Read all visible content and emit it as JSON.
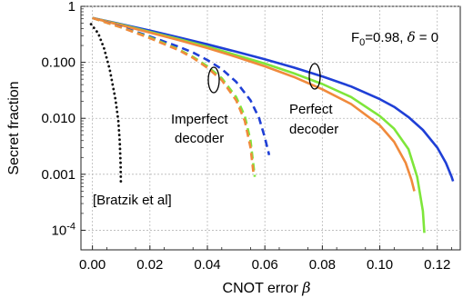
{
  "chart_data": {
    "type": "line",
    "xlabel": "CNOT error",
    "xlabel_symbol": "β",
    "ylabel": "Secret fraction",
    "xlim": [
      -0.004,
      0.128
    ],
    "ylim_log10": [
      -4.35,
      0.0
    ],
    "y_scale": "log",
    "x_ticks": [
      "0.00",
      "0.02",
      "0.04",
      "0.06",
      "0.08",
      "0.10",
      "0.12"
    ],
    "x_tick_values": [
      0.0,
      0.02,
      0.04,
      0.06,
      0.08,
      0.1,
      0.12
    ],
    "y_ticks": [
      {
        "base": "1",
        "exp": "",
        "value": 1
      },
      {
        "base": "0.100",
        "exp": "",
        "value": 0.1
      },
      {
        "base": "0.010",
        "exp": "",
        "value": 0.01
      },
      {
        "base": "0.001",
        "exp": "",
        "value": 0.001
      },
      {
        "base": "10",
        "exp": "-4",
        "value": 0.0001
      }
    ],
    "grid": true,
    "annotations": {
      "params": "F",
      "params_sub": "0",
      "params_rest": "=0.98, ",
      "delta_symbol": "δ",
      "delta_rest": " = 0",
      "imperfect_line1": "Imperfect",
      "imperfect_line2": "decoder",
      "perfect_line1": "Perfect",
      "perfect_line2": "decoder",
      "reference": "[Bratzik et al]"
    },
    "series": [
      {
        "color": "#1f3fd6",
        "style": "solid",
        "x": [
          0.0,
          0.01,
          0.02,
          0.03,
          0.04,
          0.05,
          0.06,
          0.07,
          0.08,
          0.09,
          0.1,
          0.105,
          0.11,
          0.115,
          0.12,
          0.123,
          0.125,
          0.1255
        ],
        "y": [
          0.62,
          0.48,
          0.37,
          0.28,
          0.21,
          0.155,
          0.113,
          0.081,
          0.056,
          0.037,
          0.022,
          0.016,
          0.0105,
          0.0062,
          0.003,
          0.0016,
          0.0009,
          0.00075
        ]
      },
      {
        "color": "#7ee63a",
        "style": "solid",
        "x": [
          0.0,
          0.01,
          0.02,
          0.03,
          0.04,
          0.05,
          0.06,
          0.07,
          0.08,
          0.09,
          0.1,
          0.105,
          0.11,
          0.113,
          0.115,
          0.1155
        ],
        "y": [
          0.62,
          0.47,
          0.35,
          0.26,
          0.19,
          0.135,
          0.095,
          0.064,
          0.041,
          0.024,
          0.011,
          0.0065,
          0.0028,
          0.0009,
          0.00022,
          9e-05
        ]
      },
      {
        "color": "#f08a3c",
        "style": "solid",
        "x": [
          0.0,
          0.01,
          0.02,
          0.03,
          0.04,
          0.05,
          0.06,
          0.07,
          0.08,
          0.09,
          0.1,
          0.105,
          0.109,
          0.111,
          0.112
        ],
        "y": [
          0.62,
          0.46,
          0.34,
          0.25,
          0.18,
          0.125,
          0.085,
          0.055,
          0.033,
          0.018,
          0.0075,
          0.0038,
          0.0016,
          0.0008,
          0.0005
        ]
      },
      {
        "color": "#1f3fd6",
        "style": "dashed",
        "x": [
          0.0,
          0.01,
          0.02,
          0.03,
          0.035,
          0.04,
          0.045,
          0.05,
          0.055,
          0.058,
          0.06,
          0.0615
        ],
        "y": [
          0.62,
          0.43,
          0.29,
          0.19,
          0.15,
          0.11,
          0.076,
          0.045,
          0.021,
          0.01,
          0.0045,
          0.0022
        ]
      },
      {
        "color": "#7ee63a",
        "style": "dashed",
        "x": [
          0.0,
          0.01,
          0.02,
          0.03,
          0.035,
          0.04,
          0.045,
          0.05,
          0.053,
          0.055,
          0.0565
        ],
        "y": [
          0.62,
          0.42,
          0.28,
          0.17,
          0.125,
          0.085,
          0.052,
          0.024,
          0.011,
          0.004,
          0.0009
        ]
      },
      {
        "color": "#f08a3c",
        "style": "dashed",
        "x": [
          0.0,
          0.01,
          0.02,
          0.03,
          0.035,
          0.04,
          0.045,
          0.05,
          0.053,
          0.055,
          0.056
        ],
        "y": [
          0.62,
          0.42,
          0.27,
          0.165,
          0.12,
          0.08,
          0.048,
          0.021,
          0.009,
          0.003,
          0.0011
        ]
      },
      {
        "color": "#111111",
        "style": "dotted",
        "x": [
          -0.0005,
          0.002,
          0.004,
          0.006,
          0.008,
          0.009,
          0.0095,
          0.0098,
          0.0099
        ],
        "y": [
          0.48,
          0.33,
          0.18,
          0.075,
          0.022,
          0.009,
          0.004,
          0.0015,
          0.0007
        ]
      }
    ]
  }
}
